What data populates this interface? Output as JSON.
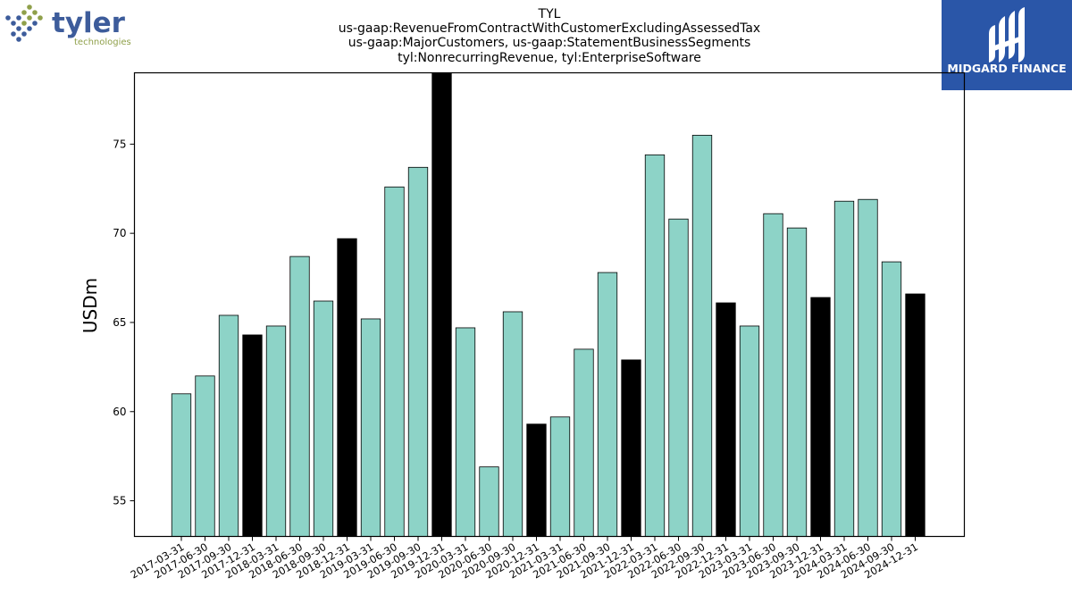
{
  "ticker": "TYL",
  "chart_data": {
    "type": "bar",
    "title": "TYL",
    "subtitle": [
      "us-gaap:RevenueFromContractWithCustomerExcludingAssessedTax",
      "us-gaap:MajorCustomers, us-gaap:StatementBusinessSegments",
      "tyl:NonrecurringRevenue, tyl:EnterpriseSoftware"
    ],
    "xlabel": "",
    "ylabel": "USDm",
    "ylim": [
      53,
      79
    ],
    "yticks": [
      55,
      60,
      65,
      70,
      75
    ],
    "grid": false,
    "colors": {
      "quarter": "#8dd3c7",
      "year_end": "#000000",
      "edge": "#000000"
    },
    "categories": [
      "2017-03-31",
      "2017-06-30",
      "2017-09-30",
      "2017-12-31",
      "2018-03-31",
      "2018-06-30",
      "2018-09-30",
      "2018-12-31",
      "2019-03-31",
      "2019-06-30",
      "2019-09-30",
      "2019-12-31",
      "2020-03-31",
      "2020-06-30",
      "2020-09-30",
      "2020-12-31",
      "2021-03-31",
      "2021-06-30",
      "2021-09-30",
      "2021-12-31",
      "2022-03-31",
      "2022-06-30",
      "2022-09-30",
      "2022-12-31",
      "2023-03-31",
      "2023-06-30",
      "2023-09-30",
      "2023-12-31",
      "2024-03-31",
      "2024-06-30",
      "2024-09-30",
      "2024-12-31"
    ],
    "values": [
      61.0,
      62.0,
      65.4,
      64.3,
      64.8,
      68.7,
      66.2,
      69.7,
      65.2,
      72.6,
      73.7,
      79.2,
      64.7,
      56.9,
      65.6,
      59.3,
      59.7,
      63.5,
      67.8,
      62.9,
      74.4,
      70.8,
      75.5,
      66.1,
      64.8,
      71.1,
      70.3,
      66.4,
      71.8,
      71.9,
      68.4,
      66.6
    ],
    "year_end": [
      false,
      false,
      false,
      true,
      false,
      false,
      false,
      true,
      false,
      false,
      false,
      true,
      false,
      false,
      false,
      true,
      false,
      false,
      false,
      true,
      false,
      false,
      false,
      true,
      false,
      false,
      false,
      true,
      false,
      false,
      false,
      true
    ]
  },
  "logos": {
    "left": {
      "word": "tyler",
      "sub": "technologies",
      "dot_colors": [
        "#3d5c9b",
        "#8fa04a"
      ]
    },
    "right": {
      "text": "MIDGARD FINANCE",
      "bg": "#2a56a8"
    }
  }
}
